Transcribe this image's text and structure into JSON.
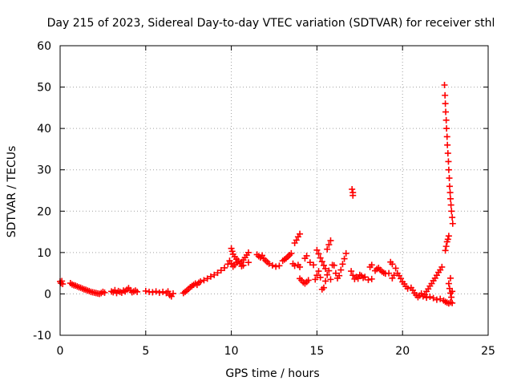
{
  "chart_data": {
    "type": "scatter",
    "title": "Day 215 of 2023, Sidereal Day-to-day VTEC variation (SDTVAR) for receiver sthl",
    "xlabel": "GPS time / hours",
    "ylabel": "SDTVAR / TECUs",
    "xlim": [
      0,
      25
    ],
    "ylim": [
      -10,
      60
    ],
    "xticks": [
      "0",
      "5",
      "10",
      "15",
      "20",
      "25"
    ],
    "yticks": [
      "-10",
      "0",
      "10",
      "20",
      "30",
      "40",
      "50",
      "60"
    ],
    "grid": true,
    "marker": "+",
    "color": "#ff0000",
    "series": [
      {
        "name": "sthl",
        "points": [
          [
            0.0,
            3.0
          ],
          [
            0.05,
            2.6
          ],
          [
            0.1,
            3.1
          ],
          [
            0.15,
            2.4
          ],
          [
            0.6,
            2.6
          ],
          [
            0.7,
            2.3
          ],
          [
            0.8,
            2.1
          ],
          [
            0.9,
            2.0
          ],
          [
            1.0,
            1.8
          ],
          [
            1.1,
            1.6
          ],
          [
            1.2,
            1.5
          ],
          [
            1.3,
            1.3
          ],
          [
            1.4,
            1.1
          ],
          [
            1.5,
            1.0
          ],
          [
            1.6,
            0.8
          ],
          [
            1.7,
            0.7
          ],
          [
            1.8,
            0.5
          ],
          [
            1.9,
            0.4
          ],
          [
            2.0,
            0.3
          ],
          [
            2.1,
            0.2
          ],
          [
            2.2,
            0.1
          ],
          [
            2.3,
            0.0
          ],
          [
            2.4,
            0.2
          ],
          [
            2.5,
            0.5
          ],
          [
            2.6,
            0.3
          ],
          [
            3.0,
            0.6
          ],
          [
            3.1,
            0.4
          ],
          [
            3.2,
            0.9
          ],
          [
            3.3,
            0.2
          ],
          [
            3.4,
            0.7
          ],
          [
            3.5,
            0.5
          ],
          [
            3.6,
            0.3
          ],
          [
            3.7,
            0.8
          ],
          [
            3.8,
            0.6
          ],
          [
            3.9,
            1.0
          ],
          [
            4.0,
            1.4
          ],
          [
            4.1,
            0.9
          ],
          [
            4.2,
            0.4
          ],
          [
            4.3,
            0.6
          ],
          [
            4.4,
            0.8
          ],
          [
            4.5,
            0.5
          ],
          [
            5.0,
            0.7
          ],
          [
            5.2,
            0.5
          ],
          [
            5.4,
            0.4
          ],
          [
            5.6,
            0.6
          ],
          [
            5.8,
            0.3
          ],
          [
            6.0,
            0.5
          ],
          [
            6.2,
            0.2
          ],
          [
            6.3,
            0.6
          ],
          [
            6.4,
            -0.3
          ],
          [
            6.5,
            -0.6
          ],
          [
            6.6,
            0.1
          ],
          [
            7.2,
            0.2
          ],
          [
            7.3,
            0.5
          ],
          [
            7.4,
            0.8
          ],
          [
            7.5,
            1.2
          ],
          [
            7.6,
            1.6
          ],
          [
            7.7,
            1.9
          ],
          [
            7.8,
            2.2
          ],
          [
            7.9,
            2.5
          ],
          [
            8.0,
            2.2
          ],
          [
            8.1,
            2.7
          ],
          [
            8.2,
            3.0
          ],
          [
            8.4,
            3.3
          ],
          [
            8.6,
            3.7
          ],
          [
            8.8,
            4.2
          ],
          [
            9.0,
            4.6
          ],
          [
            9.2,
            5.1
          ],
          [
            9.4,
            5.7
          ],
          [
            9.6,
            6.3
          ],
          [
            9.8,
            7.2
          ],
          [
            9.9,
            8.0
          ],
          [
            10.0,
            7.4
          ],
          [
            10.1,
            6.6
          ],
          [
            10.0,
            11.0
          ],
          [
            10.05,
            10.3
          ],
          [
            10.1,
            9.6
          ],
          [
            10.2,
            9.0
          ],
          [
            10.3,
            8.4
          ],
          [
            10.4,
            8.0
          ],
          [
            10.2,
            7.0
          ],
          [
            10.3,
            7.6
          ],
          [
            10.5,
            7.3
          ],
          [
            10.6,
            7.7
          ],
          [
            10.7,
            8.2
          ],
          [
            10.8,
            8.8
          ],
          [
            10.9,
            9.4
          ],
          [
            11.0,
            10.0
          ],
          [
            10.6,
            6.7
          ],
          [
            10.7,
            6.9
          ],
          [
            11.0,
            7.6
          ],
          [
            11.5,
            9.5
          ],
          [
            11.6,
            9.1
          ],
          [
            11.7,
            8.8
          ],
          [
            11.8,
            9.3
          ],
          [
            11.9,
            8.5
          ],
          [
            12.0,
            8.1
          ],
          [
            12.1,
            7.7
          ],
          [
            12.2,
            7.3
          ],
          [
            12.4,
            6.9
          ],
          [
            12.6,
            6.6
          ],
          [
            12.8,
            6.8
          ],
          [
            13.0,
            8.0
          ],
          [
            13.1,
            8.3
          ],
          [
            13.2,
            8.6
          ],
          [
            13.3,
            9.0
          ],
          [
            13.4,
            9.4
          ],
          [
            13.5,
            9.8
          ],
          [
            13.7,
            12.3
          ],
          [
            13.8,
            13.0
          ],
          [
            13.9,
            13.8
          ],
          [
            14.0,
            14.5
          ],
          [
            13.6,
            7.3
          ],
          [
            13.7,
            6.8
          ],
          [
            13.9,
            7.0
          ],
          [
            14.0,
            6.5
          ],
          [
            14.0,
            3.7
          ],
          [
            14.1,
            3.3
          ],
          [
            14.2,
            2.8
          ],
          [
            14.3,
            2.5
          ],
          [
            14.4,
            2.9
          ],
          [
            14.5,
            3.3
          ],
          [
            14.3,
            8.6
          ],
          [
            14.4,
            9.2
          ],
          [
            14.6,
            7.6
          ],
          [
            14.8,
            7.0
          ],
          [
            14.9,
            3.5
          ],
          [
            15.0,
            4.5
          ],
          [
            15.1,
            5.5
          ],
          [
            15.2,
            4.0
          ],
          [
            15.3,
            1.1
          ],
          [
            15.4,
            1.5
          ],
          [
            15.5,
            3.1
          ],
          [
            15.6,
            4.6
          ],
          [
            15.7,
            5.6
          ],
          [
            15.8,
            3.5
          ],
          [
            15.9,
            7.0
          ],
          [
            15.0,
            10.6
          ],
          [
            15.1,
            9.7
          ],
          [
            15.2,
            8.7
          ],
          [
            15.3,
            7.8
          ],
          [
            15.4,
            6.9
          ],
          [
            15.5,
            6.1
          ],
          [
            15.6,
            10.8
          ],
          [
            15.7,
            11.9
          ],
          [
            15.8,
            12.9
          ],
          [
            16.0,
            6.9
          ],
          [
            16.1,
            5.0
          ],
          [
            16.2,
            3.8
          ],
          [
            16.3,
            4.4
          ],
          [
            16.4,
            5.8
          ],
          [
            16.5,
            7.2
          ],
          [
            16.6,
            8.5
          ],
          [
            16.7,
            9.8
          ],
          [
            17.05,
            25.3
          ],
          [
            17.1,
            24.5
          ],
          [
            17.1,
            23.8
          ],
          [
            17.0,
            5.5
          ],
          [
            17.1,
            4.5
          ],
          [
            17.2,
            3.6
          ],
          [
            17.3,
            4.1
          ],
          [
            17.4,
            3.7
          ],
          [
            17.5,
            4.6
          ],
          [
            17.6,
            4.4
          ],
          [
            17.7,
            3.9
          ],
          [
            17.8,
            4.1
          ],
          [
            18.0,
            3.4
          ],
          [
            18.2,
            3.6
          ],
          [
            18.4,
            5.6
          ],
          [
            18.5,
            6.0
          ],
          [
            18.6,
            6.3
          ],
          [
            18.2,
            7.0
          ],
          [
            18.1,
            6.5
          ],
          [
            18.7,
            5.8
          ],
          [
            18.8,
            5.4
          ],
          [
            18.9,
            5.1
          ],
          [
            19.0,
            4.9
          ],
          [
            19.2,
            5.0
          ],
          [
            19.4,
            3.8
          ],
          [
            19.5,
            4.5
          ],
          [
            19.3,
            7.7
          ],
          [
            19.4,
            7.2
          ],
          [
            19.6,
            6.2
          ],
          [
            19.7,
            5.0
          ],
          [
            19.8,
            4.4
          ],
          [
            19.9,
            3.7
          ],
          [
            20.0,
            2.9
          ],
          [
            20.1,
            2.4
          ],
          [
            20.2,
            1.8
          ],
          [
            20.3,
            1.3
          ],
          [
            20.5,
            1.5
          ],
          [
            20.6,
            0.9
          ],
          [
            20.7,
            0.2
          ],
          [
            20.8,
            -0.3
          ],
          [
            20.9,
            -0.8
          ],
          [
            21.0,
            -0.4
          ],
          [
            21.1,
            0.1
          ],
          [
            21.2,
            -0.6
          ],
          [
            21.3,
            -0.2
          ],
          [
            21.4,
            0.6
          ],
          [
            21.5,
            1.2
          ],
          [
            21.6,
            1.9
          ],
          [
            21.7,
            2.5
          ],
          [
            21.8,
            3.2
          ],
          [
            21.9,
            3.8
          ],
          [
            22.0,
            4.5
          ],
          [
            22.1,
            5.2
          ],
          [
            22.2,
            5.8
          ],
          [
            22.3,
            6.5
          ],
          [
            21.4,
            -0.9
          ],
          [
            21.6,
            -0.7
          ],
          [
            21.8,
            -1.0
          ],
          [
            22.0,
            -1.4
          ],
          [
            22.2,
            -1.2
          ],
          [
            22.4,
            -1.6
          ],
          [
            22.5,
            -1.9
          ],
          [
            22.6,
            -2.1
          ],
          [
            22.7,
            -2.3
          ],
          [
            22.8,
            -2.0
          ],
          [
            22.9,
            -2.2
          ],
          [
            22.5,
            10.5
          ],
          [
            22.55,
            11.5
          ],
          [
            22.6,
            12.6
          ],
          [
            22.65,
            13.2
          ],
          [
            22.7,
            14.0
          ],
          [
            22.7,
            2.5
          ],
          [
            22.75,
            1.3
          ],
          [
            22.8,
            0.2
          ],
          [
            22.85,
            -0.8
          ],
          [
            22.9,
            0.6
          ],
          [
            22.8,
            3.8
          ],
          [
            22.45,
            50.5
          ],
          [
            22.48,
            48.0
          ],
          [
            22.5,
            46.0
          ],
          [
            22.52,
            44.0
          ],
          [
            22.55,
            42.0
          ],
          [
            22.57,
            40.0
          ],
          [
            22.6,
            38.0
          ],
          [
            22.62,
            36.0
          ],
          [
            22.65,
            34.0
          ],
          [
            22.68,
            32.0
          ],
          [
            22.7,
            30.0
          ],
          [
            22.73,
            28.0
          ],
          [
            22.75,
            26.0
          ],
          [
            22.78,
            24.5
          ],
          [
            22.8,
            23.0
          ],
          [
            22.83,
            21.5
          ],
          [
            22.86,
            20.0
          ],
          [
            22.9,
            18.5
          ],
          [
            22.93,
            17.0
          ]
        ]
      }
    ]
  }
}
